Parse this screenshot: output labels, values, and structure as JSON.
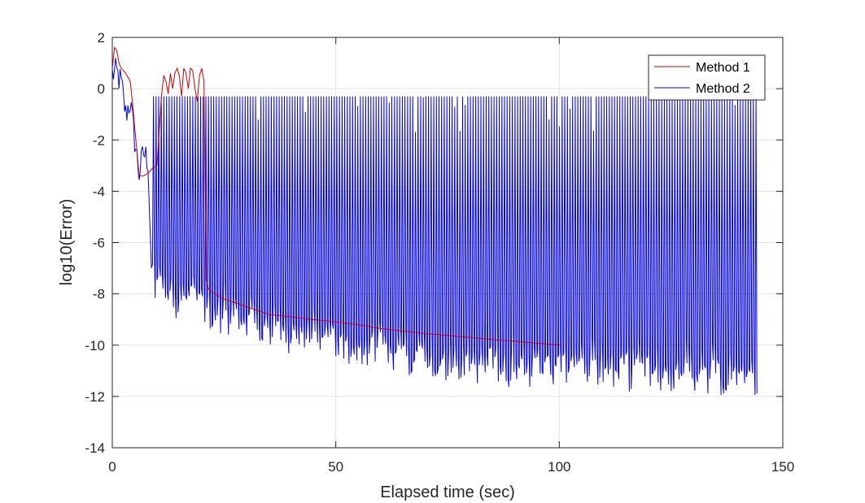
{
  "chart_data": {
    "type": "line",
    "title": "",
    "xlabel": "Elapsed time (sec)",
    "ylabel": "log10(Error)",
    "xlim": [
      0,
      150
    ],
    "ylim": [
      -14,
      2
    ],
    "xticks": [
      0,
      50,
      100,
      150
    ],
    "yticks": [
      2,
      0,
      -2,
      -4,
      -6,
      -8,
      -10,
      -12,
      -14
    ],
    "xtick_labels": [
      "0",
      "50",
      "100",
      "150"
    ],
    "ytick_labels": [
      "2",
      "0",
      "-2",
      "-4",
      "-6",
      "-8",
      "-10",
      "-12",
      "-14"
    ],
    "grid": true,
    "legend_position": "top-right",
    "series": [
      {
        "name": "Method 1",
        "color": "#cc0000",
        "x": [
          0,
          0.5,
          1,
          1.5,
          2,
          3,
          4,
          4.5,
          5,
          5.5,
          6,
          7,
          8,
          9,
          10,
          11,
          11.5,
          12,
          12.5,
          13,
          13.5,
          14,
          14.5,
          15,
          15.5,
          16,
          16.5,
          17,
          17.5,
          18,
          18.5,
          19,
          19.5,
          20,
          20.5,
          21,
          21.5,
          22,
          25,
          30,
          35,
          40,
          45,
          50,
          55,
          60,
          65,
          70,
          75,
          80,
          85,
          90,
          95,
          100.5
        ],
        "y": [
          0.8,
          1.6,
          1.5,
          1.0,
          0.8,
          0.6,
          0.3,
          -0.5,
          -1.5,
          -2.4,
          -3.4,
          -3.4,
          -3.3,
          -3.1,
          -3.0,
          -0.3,
          0.5,
          0.3,
          -0.2,
          0.6,
          0.0,
          0.6,
          0.8,
          0.5,
          -0.3,
          0.8,
          0.6,
          0.0,
          0.8,
          0.7,
          0.0,
          -0.5,
          0.5,
          0.8,
          0.3,
          -7.5,
          -7.8,
          -7.9,
          -8.2,
          -8.5,
          -8.8,
          -8.9,
          -9.0,
          -9.1,
          -9.2,
          -9.35,
          -9.45,
          -9.55,
          -9.62,
          -9.7,
          -9.78,
          -9.85,
          -9.92,
          -10.0
        ]
      },
      {
        "name": "Method 2",
        "color": "#0000e6",
        "x_range": [
          0,
          143.8
        ],
        "baseline_points": [
          [
            0,
            0.6
          ],
          [
            1,
            0.6
          ],
          [
            2,
            0.2
          ],
          [
            3,
            -1.0
          ],
          [
            4,
            -0.5
          ],
          [
            5,
            -2.0
          ],
          [
            6,
            -3.3
          ],
          [
            7,
            -2.5
          ],
          [
            8,
            -2.8
          ],
          [
            9,
            -8.4
          ],
          [
            10,
            -8.6
          ],
          [
            12,
            -8.8
          ],
          [
            15,
            -9.0
          ],
          [
            18,
            -9.2
          ],
          [
            22,
            -9.5
          ],
          [
            26,
            -9.6
          ],
          [
            30,
            -9.8
          ],
          [
            35,
            -10.1
          ],
          [
            40,
            -10.4
          ],
          [
            45,
            -10.6
          ],
          [
            50,
            -10.8
          ],
          [
            55,
            -10.9
          ],
          [
            60,
            -11.05
          ],
          [
            65,
            -11.2
          ],
          [
            70,
            -11.3
          ],
          [
            75,
            -11.4
          ],
          [
            80,
            -11.5
          ],
          [
            85,
            -11.6
          ],
          [
            90,
            -11.65
          ],
          [
            95,
            -11.7
          ],
          [
            100,
            -11.75
          ],
          [
            110,
            -11.8
          ],
          [
            120,
            -11.85
          ],
          [
            130,
            -11.9
          ],
          [
            143.8,
            -12.0
          ]
        ],
        "upper_value": -0.3,
        "num_spikes": 230
      }
    ]
  }
}
